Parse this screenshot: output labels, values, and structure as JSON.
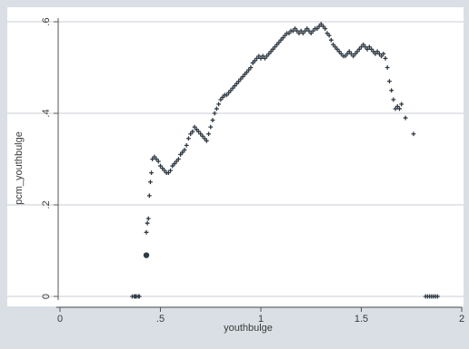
{
  "chart_data": {
    "type": "scatter",
    "title": "",
    "xlabel": "youthbulge",
    "ylabel": "pcm_youthbulge",
    "xlim": [
      0,
      2
    ],
    "ylim": [
      0,
      0.6
    ],
    "x_ticks": [
      0,
      0.5,
      1,
      1.5,
      2
    ],
    "x_tick_labels": [
      "0",
      ".5",
      "1",
      "1.5",
      "2"
    ],
    "y_ticks": [
      0,
      0.2,
      0.4,
      0.6
    ],
    "y_tick_labels": [
      "0",
      ".2",
      ".4",
      ".6"
    ],
    "grid": true,
    "legend": "none",
    "colors": {
      "frame_bg": "#d9dfe5",
      "plot_bg": "#ffffff",
      "gridline": "#c9ced4",
      "marker": "#2f3a44"
    },
    "series": [
      {
        "marker": "plus",
        "points": [
          [
            0.36,
            0
          ],
          [
            0.37,
            0
          ],
          [
            0.375,
            0
          ],
          [
            0.38,
            0
          ],
          [
            0.39,
            0
          ],
          [
            0.395,
            0
          ],
          [
            0.43,
            0.14
          ],
          [
            0.435,
            0.16
          ],
          [
            0.44,
            0.17
          ],
          [
            0.445,
            0.22
          ],
          [
            0.45,
            0.25
          ],
          [
            0.455,
            0.27
          ],
          [
            0.46,
            0.3
          ],
          [
            0.47,
            0.305
          ],
          [
            0.48,
            0.3
          ],
          [
            0.49,
            0.295
          ],
          [
            0.5,
            0.285
          ],
          [
            0.51,
            0.28
          ],
          [
            0.52,
            0.275
          ],
          [
            0.53,
            0.27
          ],
          [
            0.54,
            0.27
          ],
          [
            0.55,
            0.275
          ],
          [
            0.56,
            0.285
          ],
          [
            0.57,
            0.29
          ],
          [
            0.58,
            0.295
          ],
          [
            0.59,
            0.3
          ],
          [
            0.6,
            0.31
          ],
          [
            0.61,
            0.315
          ],
          [
            0.62,
            0.32
          ],
          [
            0.63,
            0.33
          ],
          [
            0.64,
            0.345
          ],
          [
            0.65,
            0.355
          ],
          [
            0.66,
            0.36
          ],
          [
            0.67,
            0.37
          ],
          [
            0.68,
            0.365
          ],
          [
            0.69,
            0.36
          ],
          [
            0.7,
            0.355
          ],
          [
            0.71,
            0.35
          ],
          [
            0.72,
            0.345
          ],
          [
            0.73,
            0.34
          ],
          [
            0.74,
            0.355
          ],
          [
            0.75,
            0.37
          ],
          [
            0.76,
            0.385
          ],
          [
            0.77,
            0.4
          ],
          [
            0.78,
            0.41
          ],
          [
            0.79,
            0.42
          ],
          [
            0.8,
            0.43
          ],
          [
            0.81,
            0.435
          ],
          [
            0.82,
            0.44
          ],
          [
            0.83,
            0.44
          ],
          [
            0.84,
            0.445
          ],
          [
            0.85,
            0.45
          ],
          [
            0.86,
            0.455
          ],
          [
            0.87,
            0.46
          ],
          [
            0.88,
            0.465
          ],
          [
            0.89,
            0.47
          ],
          [
            0.9,
            0.475
          ],
          [
            0.91,
            0.48
          ],
          [
            0.92,
            0.485
          ],
          [
            0.93,
            0.49
          ],
          [
            0.94,
            0.495
          ],
          [
            0.95,
            0.5
          ],
          [
            0.96,
            0.51
          ],
          [
            0.97,
            0.515
          ],
          [
            0.98,
            0.52
          ],
          [
            0.99,
            0.525
          ],
          [
            1.0,
            0.52
          ],
          [
            1.01,
            0.525
          ],
          [
            1.02,
            0.52
          ],
          [
            1.03,
            0.525
          ],
          [
            1.04,
            0.53
          ],
          [
            1.05,
            0.535
          ],
          [
            1.06,
            0.54
          ],
          [
            1.07,
            0.545
          ],
          [
            1.08,
            0.55
          ],
          [
            1.09,
            0.555
          ],
          [
            1.1,
            0.56
          ],
          [
            1.11,
            0.565
          ],
          [
            1.12,
            0.57
          ],
          [
            1.13,
            0.575
          ],
          [
            1.14,
            0.575
          ],
          [
            1.15,
            0.58
          ],
          [
            1.16,
            0.58
          ],
          [
            1.17,
            0.585
          ],
          [
            1.18,
            0.58
          ],
          [
            1.19,
            0.575
          ],
          [
            1.2,
            0.58
          ],
          [
            1.21,
            0.575
          ],
          [
            1.22,
            0.58
          ],
          [
            1.23,
            0.585
          ],
          [
            1.24,
            0.58
          ],
          [
            1.25,
            0.575
          ],
          [
            1.26,
            0.58
          ],
          [
            1.27,
            0.585
          ],
          [
            1.28,
            0.585
          ],
          [
            1.29,
            0.59
          ],
          [
            1.3,
            0.595
          ],
          [
            1.31,
            0.59
          ],
          [
            1.32,
            0.585
          ],
          [
            1.33,
            0.575
          ],
          [
            1.34,
            0.57
          ],
          [
            1.35,
            0.56
          ],
          [
            1.36,
            0.55
          ],
          [
            1.37,
            0.545
          ],
          [
            1.38,
            0.54
          ],
          [
            1.39,
            0.535
          ],
          [
            1.4,
            0.53
          ],
          [
            1.41,
            0.525
          ],
          [
            1.42,
            0.525
          ],
          [
            1.43,
            0.53
          ],
          [
            1.44,
            0.535
          ],
          [
            1.45,
            0.53
          ],
          [
            1.46,
            0.525
          ],
          [
            1.47,
            0.53
          ],
          [
            1.48,
            0.535
          ],
          [
            1.49,
            0.54
          ],
          [
            1.5,
            0.545
          ],
          [
            1.51,
            0.55
          ],
          [
            1.52,
            0.545
          ],
          [
            1.53,
            0.54
          ],
          [
            1.54,
            0.545
          ],
          [
            1.55,
            0.54
          ],
          [
            1.56,
            0.535
          ],
          [
            1.57,
            0.53
          ],
          [
            1.58,
            0.535
          ],
          [
            1.59,
            0.53
          ],
          [
            1.6,
            0.525
          ],
          [
            1.61,
            0.53
          ],
          [
            1.62,
            0.52
          ],
          [
            1.63,
            0.5
          ],
          [
            1.64,
            0.47
          ],
          [
            1.65,
            0.45
          ],
          [
            1.66,
            0.43
          ],
          [
            1.67,
            0.41
          ],
          [
            1.68,
            0.415
          ],
          [
            1.69,
            0.41
          ],
          [
            1.7,
            0.42
          ],
          [
            1.72,
            0.39
          ],
          [
            1.76,
            0.355
          ],
          [
            1.82,
            0
          ],
          [
            1.83,
            0
          ],
          [
            1.84,
            0
          ],
          [
            1.85,
            0
          ],
          [
            1.86,
            0
          ],
          [
            1.87,
            0
          ],
          [
            1.88,
            0
          ]
        ]
      },
      {
        "marker": "dot",
        "points": [
          [
            0.43,
            0.09
          ]
        ]
      }
    ]
  }
}
